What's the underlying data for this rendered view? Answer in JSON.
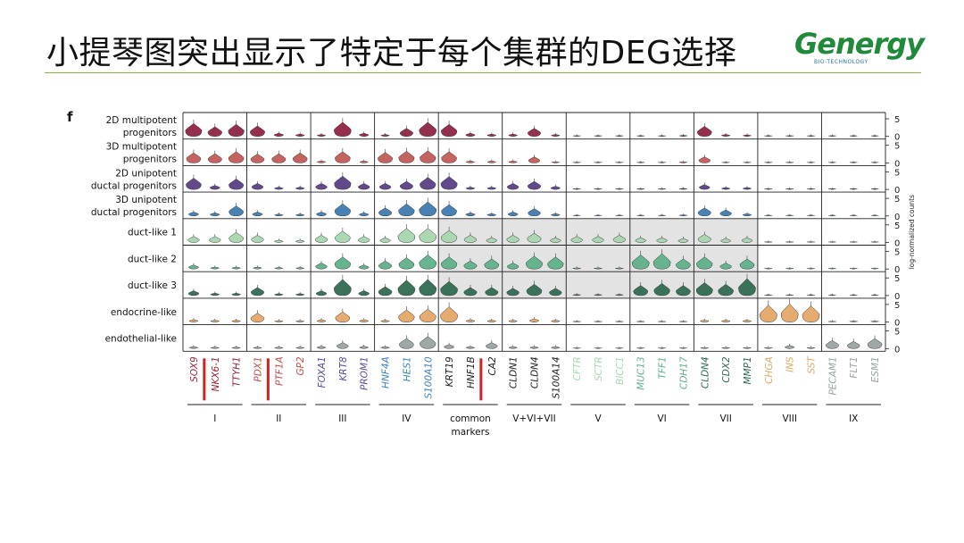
{
  "slide": {
    "title": "小提琴图突出显示了特定于每个集群的DEG选择",
    "logo_text": "Genergy",
    "logo_sub": "BIO-TECHNOLOGY"
  },
  "chart_data": {
    "type": "violin",
    "panel_label": "f",
    "ylabel": "log-normalized counts",
    "y_ticks": [
      5,
      0
    ],
    "rows": [
      {
        "label": [
          "2D multipotent",
          "progenitors"
        ],
        "color": "#8e2544"
      },
      {
        "label": [
          "3D multipotent",
          "progenitors"
        ],
        "color": "#c25a5a"
      },
      {
        "label": [
          "2D unipotent",
          "ductal progenitors"
        ],
        "color": "#5a3f86"
      },
      {
        "label": [
          "3D unipotent",
          "ductal progenitors"
        ],
        "color": "#3f7ab0"
      },
      {
        "label": [
          "duct-like 1"
        ],
        "color": "#a6d6ae"
      },
      {
        "label": [
          "duct-like 2"
        ],
        "color": "#5fb08a"
      },
      {
        "label": [
          "duct-like 3"
        ],
        "color": "#2f6b50"
      },
      {
        "label": [
          "endocrine-like"
        ],
        "color": "#e5a766"
      },
      {
        "label": [
          "endothelial-like"
        ],
        "color": "#9aa2a2"
      }
    ],
    "genes": [
      {
        "name": "SOX9",
        "color": "#9d2236"
      },
      {
        "name": "NKX6-1",
        "color": "#9d2236"
      },
      {
        "name": "TTYH1",
        "color": "#9d2236"
      },
      {
        "name": "PDX1",
        "color": "#c94a4a"
      },
      {
        "name": "PTF1A",
        "color": "#c94a4a"
      },
      {
        "name": "GP2",
        "color": "#c94a4a"
      },
      {
        "name": "FOXA1",
        "color": "#5c4a94"
      },
      {
        "name": "KRT8",
        "color": "#5c4a94"
      },
      {
        "name": "PROM1",
        "color": "#5c4a94"
      },
      {
        "name": "HNF4A",
        "color": "#3d82bd"
      },
      {
        "name": "HES1",
        "color": "#3d82bd"
      },
      {
        "name": "S100A10",
        "color": "#3d82bd"
      },
      {
        "name": "KRT19",
        "color": "#222222"
      },
      {
        "name": "HNF1B",
        "color": "#222222"
      },
      {
        "name": "CA2",
        "color": "#222222"
      },
      {
        "name": "CLDN1",
        "color": "#222222"
      },
      {
        "name": "CLDN4",
        "color": "#222222"
      },
      {
        "name": "S100A14",
        "color": "#222222"
      },
      {
        "name": "CFTR",
        "color": "#a8d8b0"
      },
      {
        "name": "SCTR",
        "color": "#a8d8b0"
      },
      {
        "name": "BICC1",
        "color": "#a8d8b0"
      },
      {
        "name": "MUC13",
        "color": "#5fb08a"
      },
      {
        "name": "TFF1",
        "color": "#5fb08a"
      },
      {
        "name": "CDH17",
        "color": "#5fb08a"
      },
      {
        "name": "CLDN4",
        "color": "#2f6b50"
      },
      {
        "name": "CDX2",
        "color": "#2f6b50"
      },
      {
        "name": "MMP1",
        "color": "#2f6b50"
      },
      {
        "name": "CHGA",
        "color": "#e5a766"
      },
      {
        "name": "INS",
        "color": "#e5a766"
      },
      {
        "name": "SST",
        "color": "#e5a766"
      },
      {
        "name": "PECAM1",
        "color": "#9aa2a2"
      },
      {
        "name": "FLT1",
        "color": "#9aa2a2"
      },
      {
        "name": "ESM1",
        "color": "#9aa2a2"
      }
    ],
    "groups": [
      {
        "label": [
          "I"
        ],
        "start": 0,
        "end": 2
      },
      {
        "label": [
          "II"
        ],
        "start": 3,
        "end": 5
      },
      {
        "label": [
          "III"
        ],
        "start": 6,
        "end": 8
      },
      {
        "label": [
          "IV"
        ],
        "start": 9,
        "end": 11
      },
      {
        "label": [
          "common",
          "markers"
        ],
        "start": 12,
        "end": 14
      },
      {
        "label": [
          "V+VI+VII"
        ],
        "start": 15,
        "end": 17
      },
      {
        "label": [
          "V"
        ],
        "start": 18,
        "end": 20
      },
      {
        "label": [
          "VI"
        ],
        "start": 21,
        "end": 23
      },
      {
        "label": [
          "VII"
        ],
        "start": 24,
        "end": 26
      },
      {
        "label": [
          "VIII"
        ],
        "start": 27,
        "end": 29
      },
      {
        "label": [
          "IX"
        ],
        "start": 30,
        "end": 32
      }
    ],
    "red_markers_after_gene": [
      0,
      3,
      13
    ],
    "highlight_regions": [
      {
        "row_start": 4,
        "row_end": 8,
        "gene_start": 12,
        "gene_end": 26
      }
    ],
    "expression": [
      [
        3.2,
        2.4,
        3.0,
        2.6,
        0.8,
        0.6,
        0.5,
        3.5,
        0.8,
        0.5,
        2.0,
        3.5,
        3.0,
        0.8,
        0.6,
        0.6,
        2.0,
        0.5,
        0.2,
        0.2,
        0.2,
        0.2,
        0.2,
        0.3,
        2.5,
        0.5,
        0.4,
        0.2,
        0.2,
        0.2,
        0.1,
        0.1,
        0.1
      ],
      [
        2.5,
        2.3,
        2.8,
        2.2,
        2.3,
        2.5,
        0.5,
        2.8,
        0.5,
        2.6,
        2.9,
        3.0,
        2.8,
        0.5,
        0.5,
        0.5,
        1.5,
        0.3,
        0.2,
        0.2,
        0.2,
        0.2,
        0.2,
        0.3,
        1.5,
        0.2,
        0.2,
        0.2,
        0.2,
        0.1,
        0.1,
        0.1,
        0.1
      ],
      [
        2.8,
        1.0,
        2.6,
        1.5,
        0.6,
        0.6,
        1.5,
        3.3,
        1.5,
        1.5,
        2.0,
        3.0,
        3.2,
        0.6,
        0.6,
        1.5,
        2.0,
        0.8,
        0.2,
        0.2,
        0.2,
        0.2,
        0.2,
        0.3,
        1.2,
        0.5,
        0.5,
        0.2,
        0.2,
        0.2,
        0.1,
        0.1,
        0.1
      ],
      [
        1.0,
        0.8,
        2.5,
        1.0,
        0.5,
        0.5,
        1.0,
        3.0,
        0.8,
        2.0,
        3.0,
        3.5,
        2.8,
        0.8,
        0.6,
        1.0,
        1.8,
        0.6,
        0.2,
        0.2,
        0.2,
        0.2,
        0.2,
        0.3,
        2.0,
        1.5,
        0.6,
        0.2,
        0.2,
        0.2,
        0.1,
        0.1,
        0.1
      ],
      [
        1.5,
        1.5,
        2.5,
        1.8,
        0.6,
        0.6,
        1.8,
        2.8,
        1.5,
        1.2,
        3.5,
        3.5,
        3.0,
        1.8,
        1.2,
        1.8,
        2.3,
        1.2,
        1.5,
        1.5,
        1.8,
        1.2,
        1.2,
        1.0,
        2.0,
        1.0,
        1.2,
        0.2,
        0.2,
        0.2,
        0.1,
        0.1,
        0.1
      ],
      [
        1.0,
        0.5,
        0.5,
        0.5,
        0.4,
        0.4,
        1.5,
        3.0,
        1.0,
        2.0,
        2.8,
        3.5,
        3.0,
        2.0,
        2.5,
        1.5,
        3.2,
        3.0,
        0.3,
        0.3,
        0.3,
        3.5,
        3.8,
        2.5,
        3.0,
        1.5,
        2.5,
        0.2,
        0.2,
        0.2,
        0.1,
        0.1,
        0.1
      ],
      [
        1.2,
        0.6,
        0.6,
        2.0,
        0.5,
        0.5,
        1.2,
        4.0,
        1.2,
        2.2,
        3.8,
        4.0,
        3.5,
        2.0,
        2.0,
        1.8,
        2.8,
        1.8,
        0.3,
        0.3,
        0.3,
        2.5,
        3.0,
        2.5,
        3.2,
        2.8,
        4.2,
        0.2,
        0.2,
        0.2,
        0.1,
        0.1,
        0.1
      ],
      [
        0.6,
        0.5,
        0.5,
        2.2,
        0.4,
        0.4,
        0.6,
        2.5,
        0.6,
        0.5,
        3.0,
        3.2,
        3.8,
        0.6,
        0.5,
        0.5,
        0.8,
        0.5,
        0.2,
        0.2,
        0.2,
        0.2,
        0.2,
        0.2,
        0.5,
        0.5,
        0.5,
        4.2,
        4.5,
        4.0,
        0.2,
        0.3,
        0.3
      ],
      [
        0.5,
        0.4,
        0.4,
        0.4,
        0.4,
        0.4,
        0.6,
        1.5,
        0.6,
        0.5,
        2.5,
        3.0,
        1.0,
        0.5,
        1.5,
        0.5,
        0.5,
        0.5,
        0.2,
        0.2,
        0.2,
        0.2,
        0.2,
        0.2,
        0.3,
        0.3,
        0.3,
        0.3,
        0.8,
        0.3,
        2.0,
        1.8,
        2.5
      ]
    ]
  }
}
